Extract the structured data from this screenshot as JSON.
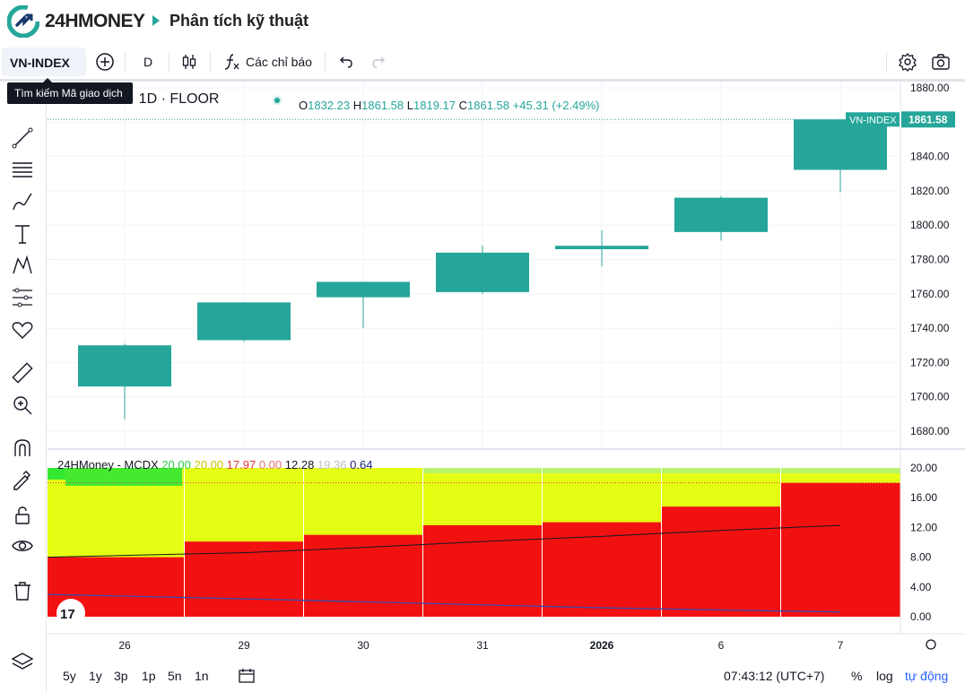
{
  "header": {
    "logo_text": "24HMONEY",
    "page_title": "Phân tích kỹ thuật"
  },
  "toolbar": {
    "symbol": "VN-INDEX",
    "interval": "D",
    "indicators_label": "Các chỉ báo"
  },
  "tooltip": {
    "text": "Tìm kiếm Mã giao dịch"
  },
  "legend": {
    "title": "VN-INDEX · 1D · FLOOR",
    "o_label": "O",
    "o": "1832.23",
    "h_label": "H",
    "h": "1861.58",
    "l_label": "L",
    "l": "1819.17",
    "c_label": "C",
    "c": "1861.58",
    "change": "+45.31 (+2.49%)"
  },
  "indicator_legend": {
    "name": "24HMoney - MCDX",
    "v1": "20.00",
    "v2": "20.00",
    "v3": "17.97",
    "v4": "0.00",
    "v5": "12.28",
    "v6": "19.36",
    "v7": "0.64",
    "colors": {
      "v1": "#2ecc40",
      "v2": "#e6e600",
      "v3": "#e53935",
      "v4": "#e57373",
      "v5": "#131722",
      "v6": "#c0c0c0",
      "v7": "#1a237e"
    }
  },
  "price_scale": {
    "labels": [
      "1880.00",
      "1860.00",
      "1840.00",
      "1820.00",
      "1800.00",
      "1780.00",
      "1760.00",
      "1740.00",
      "1720.00",
      "1700.00",
      "1680.00"
    ],
    "last_label": "VN-INDEX",
    "last_value": "1861.58"
  },
  "indicator_scale": {
    "labels": [
      "20.00",
      "16.00",
      "12.00",
      "8.00",
      "4.00",
      "0.00"
    ]
  },
  "time_axis": {
    "labels": [
      "26",
      "29",
      "30",
      "31",
      "2026",
      "6",
      "7"
    ]
  },
  "bottombar": {
    "ranges": [
      "5y",
      "1y",
      "3p",
      "1p",
      "5n",
      "1n"
    ],
    "clock": "07:43:12 (UTC+7)",
    "percent": "%",
    "log": "log",
    "auto": "tự động"
  },
  "colors": {
    "up": "#26a69a",
    "red": "#f21111",
    "yellow": "#e4ff14",
    "green": "#33e833",
    "accent": "#2962ff"
  },
  "chart_data": [
    {
      "type": "candlestick",
      "title": "VN-INDEX · 1D · FLOOR",
      "categories": [
        "26",
        "29",
        "30",
        "31",
        "2026",
        "6",
        "7"
      ],
      "series": [
        {
          "open": [
            1706,
            1733,
            1758,
            1761,
            1786,
            1796,
            1832.23
          ],
          "high": [
            1731,
            1755,
            1767,
            1788,
            1797,
            1817,
            1861.58
          ],
          "low": [
            1687,
            1732,
            1740,
            1760,
            1776,
            1791,
            1819.17
          ],
          "close": [
            1730,
            1755,
            1767,
            1784,
            1788,
            1816,
            1861.58
          ]
        }
      ],
      "ylim": [
        1670,
        1885
      ]
    },
    {
      "type": "area",
      "title": "24HMoney - MCDX",
      "categories": [
        "26",
        "29",
        "30",
        "31",
        "2026",
        "6",
        "7"
      ],
      "series": [
        {
          "values": [
            8.0,
            10.1,
            11.0,
            12.3,
            12.7,
            14.8,
            17.97
          ]
        },
        {
          "values": [
            20.0,
            20.0,
            20.0,
            20.0,
            20.0,
            20.0,
            20.0
          ]
        },
        {
          "values": [
            17.8,
            19.0,
            19.3,
            20.0,
            20.0,
            20.0,
            20.0
          ]
        },
        {
          "values": [
            8.0,
            8.6,
            9.3,
            10.1,
            10.8,
            11.6,
            12.28
          ]
        },
        {
          "values": [
            3.0,
            2.4,
            2.0,
            1.6,
            1.2,
            0.9,
            0.64
          ]
        }
      ],
      "ylim": [
        0,
        20
      ]
    }
  ]
}
